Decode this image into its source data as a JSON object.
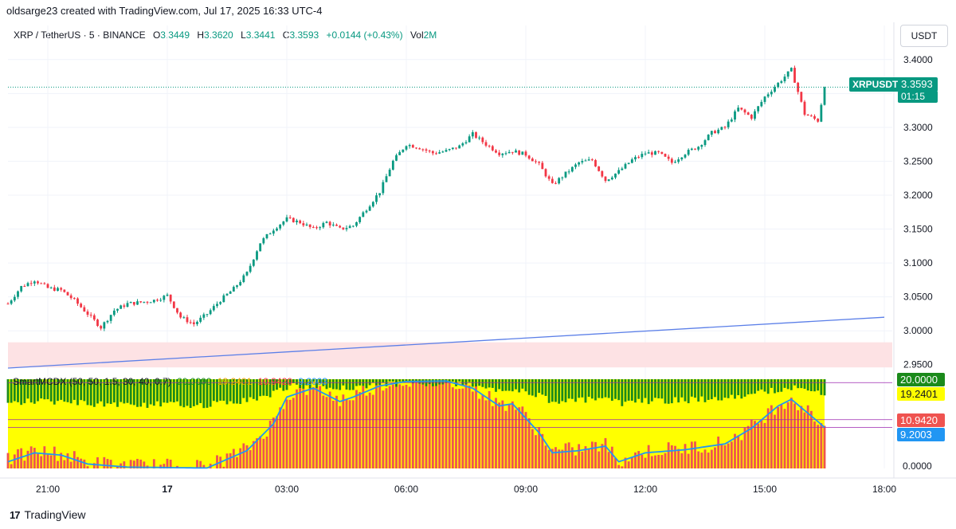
{
  "header": {
    "text": "oldsarge23 created with TradingView.com, Jul 17, 2025 16:33 UTC-4"
  },
  "symbol": {
    "name": "XRP / TetherUS · 5 · BINANCE",
    "open_label": "O",
    "open": "3.3449",
    "high_label": "H",
    "high": "3.3620",
    "low_label": "L",
    "low": "3.3441",
    "close_label": "C",
    "close": "3.3593",
    "change": "+0.0144 (+0.43%)",
    "vol_label": "Vol",
    "vol": "2M"
  },
  "currency": "USDT",
  "price_tag": {
    "ticker": "XRPUSDT",
    "price": "3.3593",
    "countdown": "01:15"
  },
  "indicator": {
    "name": "SmartMCDX (50, 50, 1.5, 30, 40, 0.7)",
    "v1": "20.0000",
    "v2": "19.2401",
    "v3": "10.9420",
    "v4": "9.2003",
    "tags": [
      "20.0000",
      "19.2401",
      "10.9420",
      "9.2003"
    ],
    "zero_label": "0.0000"
  },
  "footer": {
    "brand": "TradingView"
  },
  "colors": {
    "up": "#089981",
    "down": "#f23645",
    "trend": "#5b7fe8",
    "zone": "#fde2e4",
    "yellow": "#ffff00",
    "green": "#1b8a1b",
    "red": "#ef5350",
    "blue_line": "#2196f3"
  },
  "chart_data": {
    "type": "candlestick",
    "y_axis_ticks": [
      "3.4000",
      "3.3500",
      "3.3000",
      "3.2500",
      "3.2000",
      "3.1500",
      "3.1000",
      "3.0500",
      "3.0000",
      "2.9500"
    ],
    "x_axis_ticks": [
      "21:00",
      "17",
      "03:00",
      "06:00",
      "09:00",
      "12:00",
      "15:00",
      "18:00"
    ],
    "ylim": [
      2.945,
      3.415
    ],
    "last_close": 3.3593,
    "trendline": {
      "start": [
        "20:00",
        2.945
      ],
      "end": [
        "18:00",
        3.02
      ]
    },
    "zone": [
      2.946,
      2.983
    ],
    "anchors": [
      [
        "20:00",
        3.04
      ],
      [
        "20:20",
        3.065
      ],
      [
        "20:40",
        3.075
      ],
      [
        "21:00",
        3.063
      ],
      [
        "21:20",
        3.06
      ],
      [
        "21:40",
        3.045
      ],
      [
        "22:00",
        3.025
      ],
      [
        "22:20",
        3.005
      ],
      [
        "22:40",
        3.03
      ],
      [
        "23:00",
        3.04
      ],
      [
        "23:20",
        3.042
      ],
      [
        "23:40",
        3.045
      ],
      [
        "00:00",
        3.052
      ],
      [
        "00:20",
        3.02
      ],
      [
        "00:40",
        3.01
      ],
      [
        "01:00",
        3.025
      ],
      [
        "01:20",
        3.045
      ],
      [
        "01:40",
        3.062
      ],
      [
        "02:00",
        3.085
      ],
      [
        "02:20",
        3.13
      ],
      [
        "02:40",
        3.15
      ],
      [
        "03:00",
        3.165
      ],
      [
        "03:20",
        3.16
      ],
      [
        "03:40",
        3.15
      ],
      [
        "04:00",
        3.16
      ],
      [
        "04:20",
        3.15
      ],
      [
        "04:40",
        3.155
      ],
      [
        "05:00",
        3.18
      ],
      [
        "05:20",
        3.205
      ],
      [
        "05:40",
        3.25
      ],
      [
        "06:00",
        3.275
      ],
      [
        "06:20",
        3.27
      ],
      [
        "06:40",
        3.262
      ],
      [
        "07:00",
        3.265
      ],
      [
        "07:20",
        3.272
      ],
      [
        "07:40",
        3.29
      ],
      [
        "08:00",
        3.275
      ],
      [
        "08:20",
        3.262
      ],
      [
        "08:40",
        3.265
      ],
      [
        "09:00",
        3.26
      ],
      [
        "09:20",
        3.245
      ],
      [
        "09:40",
        3.215
      ],
      [
        "10:00",
        3.232
      ],
      [
        "10:20",
        3.248
      ],
      [
        "10:40",
        3.252
      ],
      [
        "11:00",
        3.222
      ],
      [
        "11:20",
        3.235
      ],
      [
        "11:40",
        3.252
      ],
      [
        "12:00",
        3.262
      ],
      [
        "12:20",
        3.262
      ],
      [
        "12:40",
        3.248
      ],
      [
        "13:00",
        3.262
      ],
      [
        "13:20",
        3.272
      ],
      [
        "13:40",
        3.292
      ],
      [
        "14:00",
        3.3
      ],
      [
        "14:20",
        3.328
      ],
      [
        "14:40",
        3.315
      ],
      [
        "15:00",
        3.345
      ],
      [
        "15:20",
        3.365
      ],
      [
        "15:40",
        3.385
      ],
      [
        "16:00",
        3.32
      ],
      [
        "16:20",
        3.31
      ],
      [
        "16:30",
        3.3593
      ]
    ],
    "indicator_ylim": [
      0,
      20
    ],
    "indicator_levels": [
      19.2401,
      10.942,
      9.2003,
      0.0
    ],
    "indicator_line": [
      [
        "20:00",
        1.5
      ],
      [
        "20:40",
        3.5
      ],
      [
        "21:20",
        3.0
      ],
      [
        "22:00",
        1.0
      ],
      [
        "23:00",
        0.3
      ],
      [
        "00:00",
        0.2
      ],
      [
        "01:00",
        0.1
      ],
      [
        "02:00",
        4.0
      ],
      [
        "02:40",
        10.0
      ],
      [
        "03:00",
        16.0
      ],
      [
        "03:40",
        18.0
      ],
      [
        "04:20",
        15.0
      ],
      [
        "04:40",
        16.0
      ],
      [
        "05:20",
        18.5
      ],
      [
        "06:00",
        19.5
      ],
      [
        "07:00",
        19.6
      ],
      [
        "07:40",
        18.0
      ],
      [
        "08:20",
        14.0
      ],
      [
        "08:40",
        14.5
      ],
      [
        "09:20",
        8.0
      ],
      [
        "09:40",
        3.5
      ],
      [
        "10:20",
        4.0
      ],
      [
        "11:00",
        5.0
      ],
      [
        "11:20",
        1.5
      ],
      [
        "12:00",
        3.5
      ],
      [
        "13:00",
        4.2
      ],
      [
        "14:00",
        5.5
      ],
      [
        "14:40",
        9.0
      ],
      [
        "15:20",
        14.0
      ],
      [
        "15:40",
        15.5
      ],
      [
        "16:20",
        10.5
      ],
      [
        "16:30",
        9.2
      ]
    ]
  }
}
